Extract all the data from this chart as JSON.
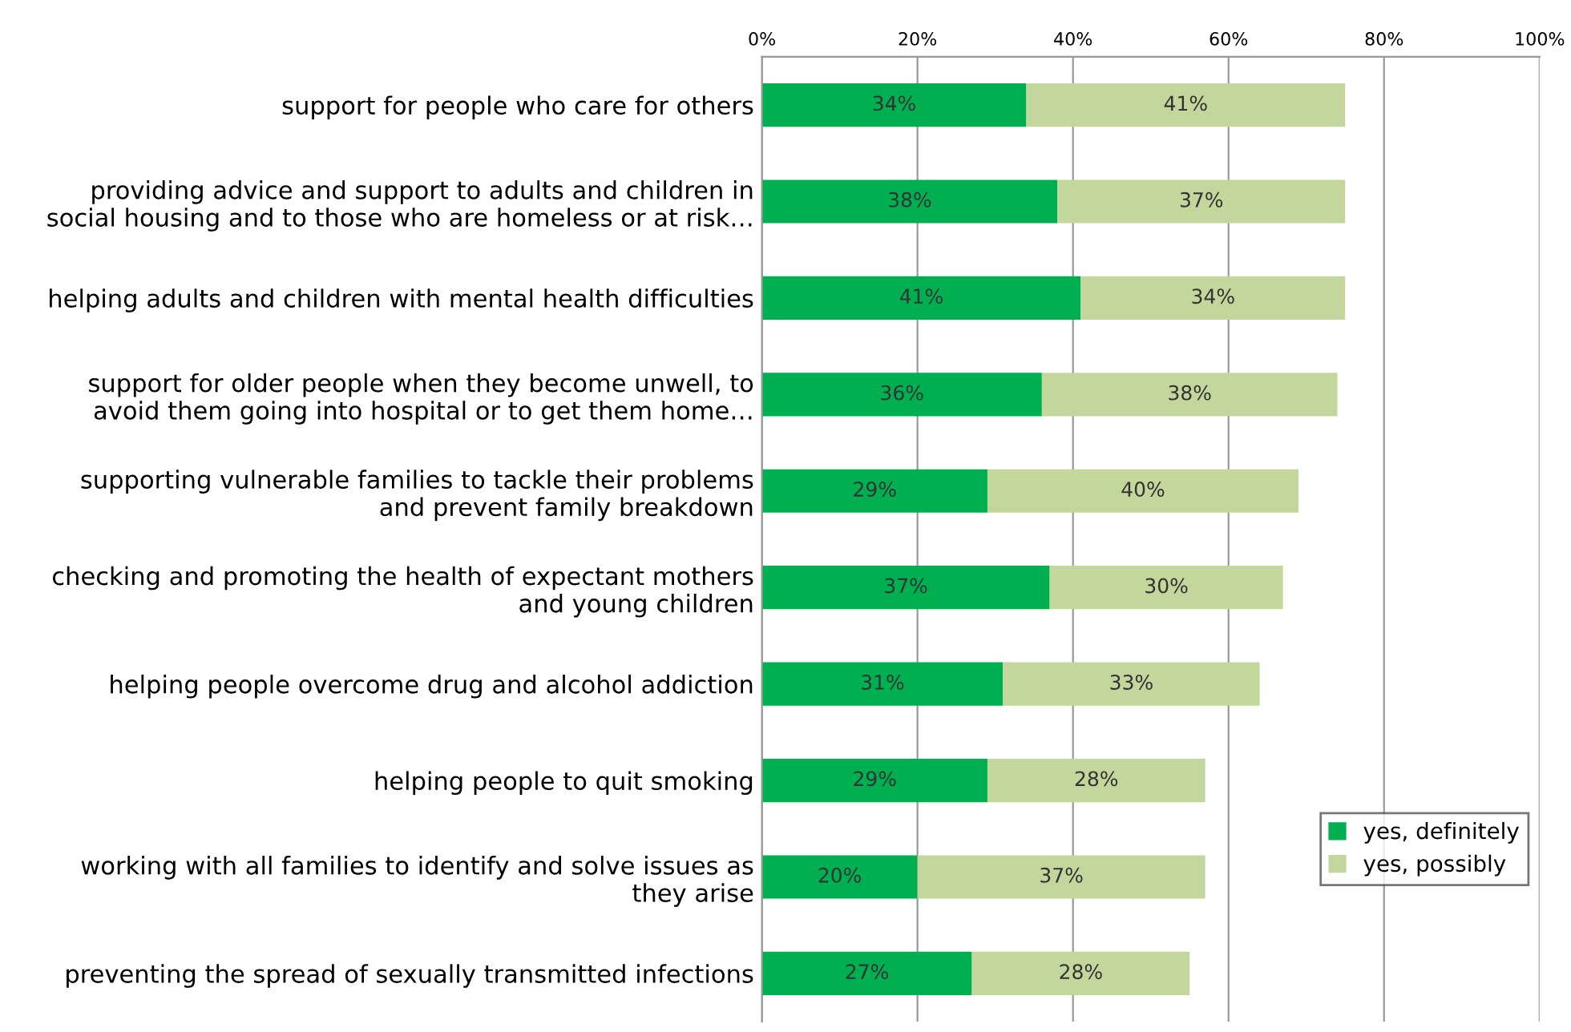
{
  "chart_data": {
    "type": "bar",
    "orientation": "horizontal",
    "stacked": true,
    "categories": [
      "support for people who care for others",
      "providing advice and support to adults and children in\nsocial housing and to those who are homeless or at risk…",
      "helping adults and children with mental health difficulties",
      "support for older people when they become unwell, to\navoid them going into hospital or to get them home…",
      "supporting vulnerable families to tackle their problems\nand prevent family breakdown",
      "checking and promoting the health of expectant mothers\nand young children",
      "helping people overcome drug and alcohol addiction",
      "helping people to quit smoking",
      "working with all families to identify and solve issues as\nthey arise",
      "preventing the spread of sexually transmitted infections"
    ],
    "series": [
      {
        "name": "yes, definitely",
        "color": "#00b050",
        "values": [
          34,
          38,
          41,
          36,
          29,
          37,
          31,
          29,
          20,
          27
        ],
        "value_labels": [
          "34%",
          "38%",
          "41%",
          "36%",
          "29%",
          "37%",
          "31%",
          "29%",
          "20%",
          "27%"
        ]
      },
      {
        "name": "yes, possibly",
        "color": "#c3d69b",
        "values": [
          41,
          37,
          34,
          38,
          40,
          30,
          33,
          28,
          37,
          28
        ],
        "value_labels": [
          "41%",
          "37%",
          "34%",
          "38%",
          "40%",
          "30%",
          "33%",
          "28%",
          "37%",
          "28%"
        ]
      }
    ],
    "xlim": [
      0,
      100
    ],
    "xticks": [
      {
        "value": 0,
        "label": "0%"
      },
      {
        "value": 20,
        "label": "20%"
      },
      {
        "value": 40,
        "label": "40%"
      },
      {
        "value": 60,
        "label": "60%"
      },
      {
        "value": 80,
        "label": "80%"
      },
      {
        "value": 100,
        "label": "100%"
      }
    ],
    "grid": "x",
    "legend": "bottom right"
  }
}
